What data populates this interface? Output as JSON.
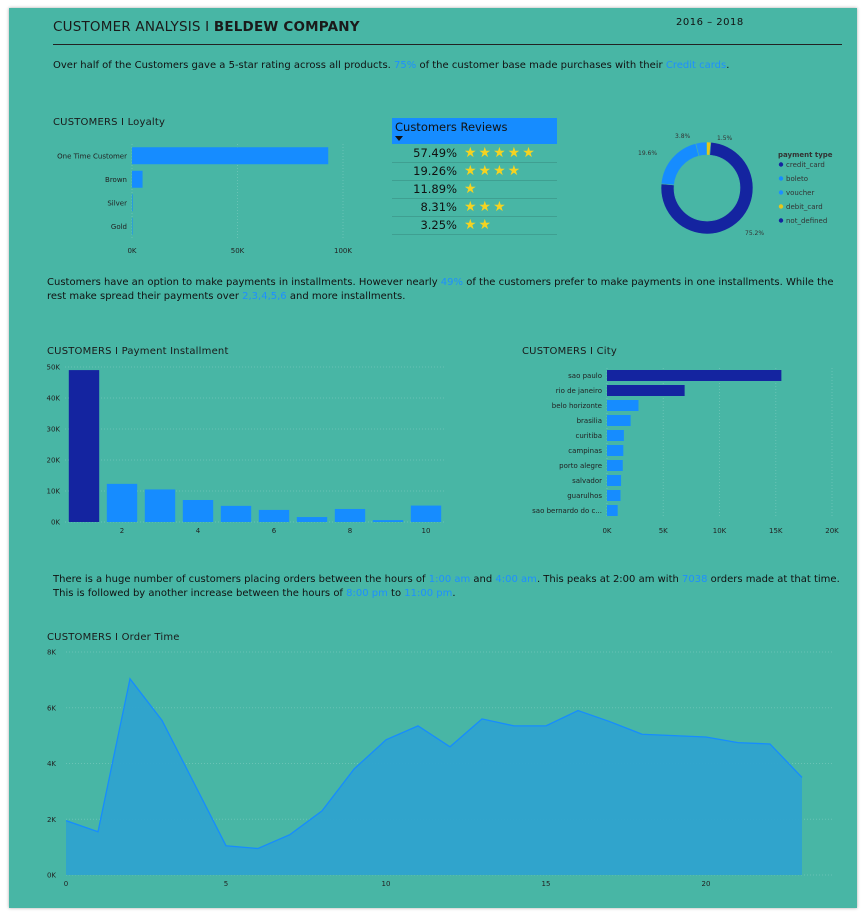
{
  "header": {
    "title_part1": "CUSTOMER ANALYSIS I ",
    "title_part2": "BELDEW COMPANY",
    "years": "2016 – 2018"
  },
  "intro": {
    "t1": "Over half of the Customers gave a 5-star rating across all products. ",
    "h1": "75%",
    "t2": " of the customer base made purchases with their ",
    "h2": "Credit cards",
    "t3": "."
  },
  "installment_text": {
    "t1": "Customers have an option to make payments in installments. However nearly ",
    "h1": "49%",
    "t2": " of the customers prefer to make  payments in one installments. While the rest make spread their payments over ",
    "h2": "2,3,4,5,6",
    "t3": " and more installments."
  },
  "order_text": {
    "t1": "There is  a huge number of customers placing orders between the hours of ",
    "h1": "1:00 am",
    "t2": " and ",
    "h2": "4:00 am",
    "t3": ". This peaks at 2:00 am with ",
    "h3": "7038",
    "t4": " orders made at that time. This is followed by another increase between the hours of ",
    "h4": "8:00 pm",
    "t5": " to ",
    "h5": "11:00 pm",
    "t6": "."
  },
  "reviews": {
    "header": "Customers  Reviews",
    "rows": [
      {
        "pct": "57.49%",
        "stars": 5
      },
      {
        "pct": "19.26%",
        "stars": 4
      },
      {
        "pct": "11.89%",
        "stars": 1
      },
      {
        "pct": "8.31%",
        "stars": 3
      },
      {
        "pct": "3.25%",
        "stars": 2
      }
    ]
  },
  "colors": {
    "background": "#48b6a5",
    "bright_blue": "#168cff",
    "dark_blue": "#1424a0",
    "star": "#f5d321"
  },
  "chart_data": [
    {
      "id": "loyalty",
      "type": "bar",
      "orientation": "horizontal",
      "title": "CUSTOMERS I Loyalty",
      "categories": [
        "One Time Customer",
        "Brown",
        "Silver",
        "Gold"
      ],
      "values": [
        93000,
        5000,
        300,
        100
      ],
      "xlim": [
        0,
        100000
      ],
      "xticks": [
        "0K",
        "50K",
        "100K"
      ]
    },
    {
      "id": "payment_type",
      "type": "pie",
      "donut": true,
      "legend_title": "payment type",
      "legend_position": "right",
      "labels": [
        "credit_card",
        "boleto",
        "voucher",
        "debit_card",
        "not_defined"
      ],
      "values": [
        75.2,
        19.6,
        3.8,
        1.5,
        0.0
      ],
      "slice_labels": [
        "75.2%",
        "19.6%",
        "3.8%",
        "1.5%",
        ""
      ],
      "colors": [
        "#1424a0",
        "#168cff",
        "#1e8fff",
        "#e6c619",
        "#1424a0"
      ]
    },
    {
      "id": "installment",
      "type": "bar",
      "title": "CUSTOMERS I Payment Installment",
      "categories": [
        1,
        2,
        3,
        4,
        5,
        6,
        7,
        8,
        9,
        10
      ],
      "values": [
        49000,
        12300,
        10500,
        7100,
        5200,
        3900,
        1600,
        4200,
        600,
        5300
      ],
      "highlight_index": 0,
      "ylim": [
        0,
        50000
      ],
      "yticks": [
        "0K",
        "10K",
        "20K",
        "30K",
        "40K",
        "50K"
      ],
      "xticks": [
        "2",
        "4",
        "6",
        "8",
        "10"
      ]
    },
    {
      "id": "city",
      "type": "bar",
      "orientation": "horizontal",
      "title": "CUSTOMERS I City",
      "categories": [
        "sao paulo",
        "rio de janeiro",
        "belo horizonte",
        "brasilia",
        "curitiba",
        "campinas",
        "porto alegre",
        "salvador",
        "guarulhos",
        "sao bernardo do c..."
      ],
      "values": [
        15500,
        6900,
        2800,
        2100,
        1500,
        1450,
        1400,
        1250,
        1200,
        950
      ],
      "highlight_count": 2,
      "xlim": [
        0,
        20000
      ],
      "xticks": [
        "0K",
        "5K",
        "10K",
        "15K",
        "20K"
      ]
    },
    {
      "id": "order_time",
      "type": "area",
      "title": "CUSTOMERS I Order Time",
      "x": [
        0,
        1,
        2,
        3,
        4,
        5,
        6,
        7,
        8,
        9,
        10,
        11,
        12,
        13,
        14,
        15,
        16,
        17,
        18,
        19,
        20,
        21,
        22,
        23
      ],
      "values": [
        1950,
        1550,
        7038,
        5550,
        3300,
        1050,
        950,
        1450,
        2300,
        3800,
        4850,
        5350,
        4600,
        5600,
        5350,
        5350,
        5900,
        5500,
        5050,
        5000,
        4950,
        4750,
        4700,
        3500
      ],
      "xlim": [
        0,
        23
      ],
      "ylim": [
        0,
        8000
      ],
      "yticks": [
        "0K",
        "2K",
        "4K",
        "6K",
        "8K"
      ],
      "xticks": [
        "0",
        "5",
        "10",
        "15",
        "20"
      ]
    }
  ]
}
